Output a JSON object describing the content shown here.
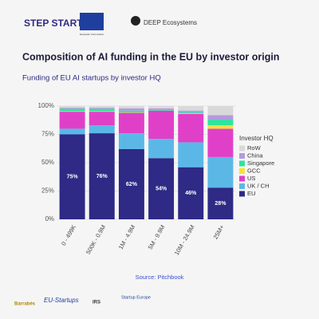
{
  "header": {
    "logos": [
      "STEP STARTUPS",
      "European Commission",
      "DEEP Ecosystems"
    ]
  },
  "chart_data": {
    "type": "stacked_bar",
    "title": "Composition of AI funding in the EU by investor origin",
    "subtitle": "Funding of EU AI startups by investor HQ",
    "categories": [
      "0 - 499K",
      "500K - 0.9M",
      "1M - 4.9M",
      "5M - 9.9M",
      "10M - 24.9M",
      "25M+"
    ],
    "series": [
      {
        "name": "EU",
        "color": "#2e2a85",
        "values": [
          75,
          76,
          62,
          54,
          46,
          28
        ],
        "value_labels": [
          "75%",
          "76%",
          "62%",
          "54%",
          "46%",
          "28%"
        ]
      },
      {
        "name": "UK / CH",
        "color": "#5bb8e6",
        "values": [
          5,
          7,
          14,
          17,
          22,
          27
        ]
      },
      {
        "name": "US",
        "color": "#e040c8",
        "values": [
          15,
          12,
          18,
          25,
          25,
          25
        ]
      },
      {
        "name": "GCC",
        "color": "#f5e23b",
        "values": [
          0.5,
          0.5,
          0.5,
          0,
          0.5,
          3
        ]
      },
      {
        "name": "Singapore",
        "color": "#2fe3a0",
        "values": [
          2,
          2,
          1.5,
          1,
          1,
          5
        ]
      },
      {
        "name": "China",
        "color": "#b49ae0",
        "values": [
          1,
          1,
          2,
          1,
          1.5,
          4
        ]
      },
      {
        "name": "RoW",
        "color": "#d9d9d9",
        "values": [
          1.5,
          1.5,
          2,
          2,
          4,
          8
        ]
      }
    ],
    "ylim": [
      0,
      100
    ],
    "yticks": [
      {
        "value": 0,
        "label": "0%"
      },
      {
        "value": 25,
        "label": "25%"
      },
      {
        "value": 50,
        "label": "50%"
      },
      {
        "value": 75,
        "label": "75%"
      },
      {
        "value": 100,
        "label": "100%"
      }
    ],
    "grid": true,
    "legend_title": "Investor HQ",
    "legend": "right"
  },
  "footer": {
    "source": "Source: Pitchbook",
    "logos": [
      "Barrabés",
      "EU-Startups",
      "IRS",
      "Startup Europe"
    ]
  }
}
